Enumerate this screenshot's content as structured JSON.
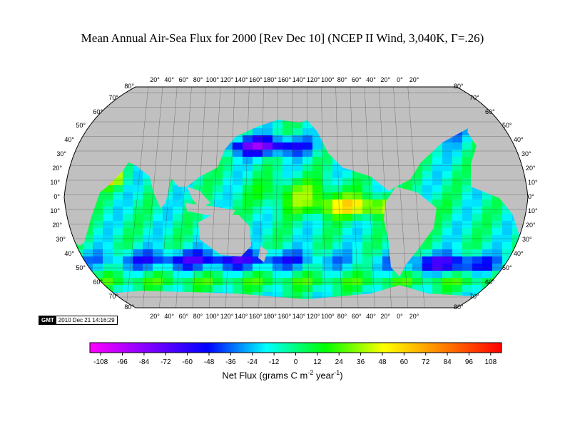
{
  "title": "Mean Annual Air-Sea Flux for 2000 [Rev Dec 10] (NCEP II Wind, 3,040K, Γ=.26)",
  "map": {
    "projection": "Robinson-like global, Pacific-centered",
    "land_color": "#c0c0c0",
    "top_longitude_labels": [
      "20°",
      "40°",
      "60°",
      "80°",
      "100°",
      "120°",
      "140°",
      "160°",
      "180°",
      "160°",
      "140°",
      "120°",
      "100°",
      "80°",
      "60°",
      "40°",
      "20°",
      "0°",
      "20°"
    ],
    "bottom_longitude_labels": [
      "20°",
      "40°",
      "60°",
      "80°",
      "100°",
      "120°",
      "140°",
      "160°",
      "180°",
      "160°",
      "140°",
      "120°",
      "100°",
      "80°",
      "60°",
      "40°",
      "20°",
      "0°",
      "20°"
    ],
    "left_latitude_labels": [
      "80°",
      "70°",
      "60°",
      "50°",
      "40°",
      "30°",
      "20°",
      "10°",
      "0°",
      "10°",
      "20°",
      "30°",
      "40°",
      "50°",
      "60°",
      "70°",
      "80°"
    ],
    "right_latitude_labels": [
      "80°",
      "70°",
      "60°",
      "50°",
      "40°",
      "30°",
      "20°",
      "10°",
      "0°",
      "10°",
      "20°",
      "30°",
      "40°",
      "50°",
      "60°",
      "70°",
      "80°"
    ]
  },
  "stamp": {
    "logo": "GMT",
    "timestamp": "2010 Dec 21 14:16:29"
  },
  "colorbar": {
    "ticks": [
      "-108",
      "-96",
      "-84",
      "-72",
      "-60",
      "-48",
      "-36",
      "-24",
      "-12",
      "0",
      "12",
      "24",
      "36",
      "48",
      "60",
      "72",
      "84",
      "96",
      "108"
    ],
    "range": [
      -114,
      114
    ],
    "colors": [
      "#ff00ff",
      "#c000ff",
      "#8000ff",
      "#4000ff",
      "#0000ff",
      "#0080ff",
      "#00ffff",
      "#00ff80",
      "#00ff00",
      "#80ff00",
      "#ffff00",
      "#ffc000",
      "#ff8000",
      "#ff4000",
      "#ff0000"
    ],
    "label_main": "Net Flux (grams C m",
    "label_exp1": "-2",
    "label_mid": " year",
    "label_exp2": "-1",
    "label_end": ")"
  }
}
